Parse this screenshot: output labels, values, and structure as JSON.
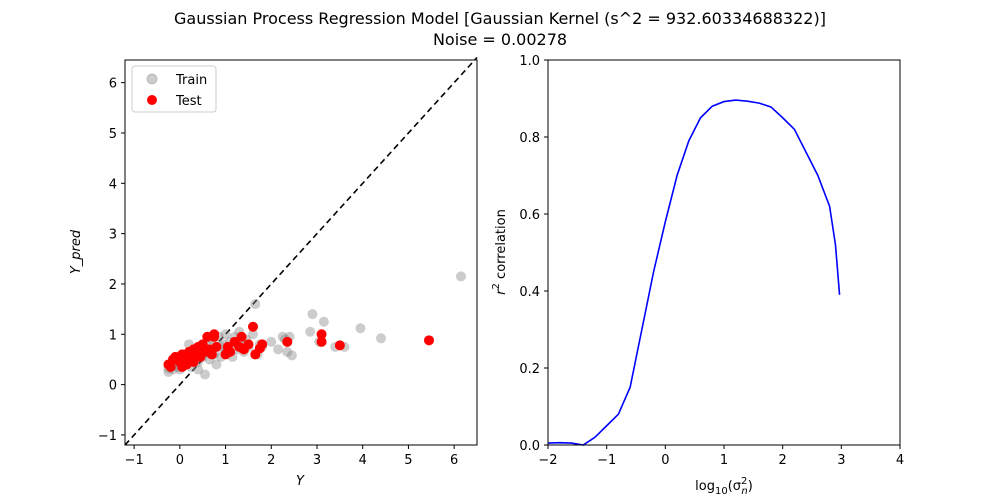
{
  "figure": {
    "title_line1": "Gaussian Process Regression Model [Gaussian Kernel (s^2 = 932.60334688322)]",
    "title_line2": "Noise = 0.00278"
  },
  "chart_data": [
    {
      "type": "scatter",
      "xlabel": "Y",
      "ylabel": "Y_pred",
      "xlim": [
        -1.2,
        6.5
      ],
      "ylim": [
        -1.2,
        6.45
      ],
      "xticks": [
        "−1",
        "0",
        "1",
        "2",
        "3",
        "4",
        "5",
        "6"
      ],
      "yticks": [
        "−1",
        "0",
        "1",
        "2",
        "3",
        "4",
        "5",
        "6"
      ],
      "legend": {
        "position": "upper-left",
        "entries": [
          "Train",
          "Test"
        ]
      },
      "reference_line": {
        "style": "dashed",
        "color": "#000000",
        "from": [
          -1.2,
          -1.2
        ],
        "to": [
          6.5,
          6.5
        ]
      },
      "series": [
        {
          "name": "Train",
          "color": "#808080",
          "opacity": 0.4,
          "points": [
            [
              -0.25,
              0.25
            ],
            [
              -0.25,
              0.32
            ],
            [
              -0.2,
              0.4
            ],
            [
              -0.15,
              0.3
            ],
            [
              -0.1,
              0.45
            ],
            [
              -0.05,
              0.35
            ],
            [
              0.0,
              0.3
            ],
            [
              0.0,
              0.42
            ],
            [
              0.05,
              0.5
            ],
            [
              0.1,
              0.38
            ],
            [
              0.1,
              0.6
            ],
            [
              0.15,
              0.45
            ],
            [
              0.2,
              0.55
            ],
            [
              0.2,
              0.8
            ],
            [
              0.25,
              0.35
            ],
            [
              0.3,
              0.65
            ],
            [
              0.3,
              0.5
            ],
            [
              0.35,
              0.7
            ],
            [
              0.4,
              0.45
            ],
            [
              0.4,
              0.3
            ],
            [
              0.45,
              0.6
            ],
            [
              0.5,
              0.75
            ],
            [
              0.5,
              0.55
            ],
            [
              0.55,
              0.2
            ],
            [
              0.6,
              0.85
            ],
            [
              0.6,
              0.65
            ],
            [
              0.65,
              0.5
            ],
            [
              0.7,
              0.9
            ],
            [
              0.7,
              0.7
            ],
            [
              0.75,
              0.6
            ],
            [
              0.8,
              0.4
            ],
            [
              0.85,
              0.95
            ],
            [
              0.9,
              0.55
            ],
            [
              0.9,
              0.75
            ],
            [
              0.95,
              0.8
            ],
            [
              1.0,
              0.65
            ],
            [
              1.0,
              1.0
            ],
            [
              1.05,
              0.7
            ],
            [
              1.1,
              0.85
            ],
            [
              1.15,
              0.55
            ],
            [
              1.2,
              0.95
            ],
            [
              1.25,
              0.7
            ],
            [
              1.3,
              0.75
            ],
            [
              1.3,
              1.05
            ],
            [
              1.35,
              0.85
            ],
            [
              1.4,
              0.65
            ],
            [
              1.45,
              0.9
            ],
            [
              1.5,
              0.75
            ],
            [
              1.6,
              1.0
            ],
            [
              1.65,
              1.6
            ],
            [
              1.7,
              0.6
            ],
            [
              1.75,
              0.8
            ],
            [
              1.8,
              0.75
            ],
            [
              2.0,
              0.85
            ],
            [
              2.15,
              0.7
            ],
            [
              2.25,
              0.95
            ],
            [
              2.3,
              0.9
            ],
            [
              2.35,
              0.65
            ],
            [
              2.4,
              0.95
            ],
            [
              2.45,
              0.58
            ],
            [
              2.85,
              1.05
            ],
            [
              2.9,
              1.4
            ],
            [
              3.05,
              0.85
            ],
            [
              3.15,
              1.25
            ],
            [
              3.4,
              0.75
            ],
            [
              3.6,
              0.75
            ],
            [
              3.95,
              1.12
            ],
            [
              4.4,
              0.92
            ],
            [
              6.15,
              2.15
            ]
          ]
        },
        {
          "name": "Test",
          "color": "#ff0000",
          "opacity": 1.0,
          "points": [
            [
              -0.25,
              0.4
            ],
            [
              -0.2,
              0.35
            ],
            [
              -0.15,
              0.5
            ],
            [
              -0.1,
              0.55
            ],
            [
              0.0,
              0.45
            ],
            [
              0.05,
              0.6
            ],
            [
              0.05,
              0.35
            ],
            [
              0.1,
              0.5
            ],
            [
              0.15,
              0.4
            ],
            [
              0.2,
              0.65
            ],
            [
              0.25,
              0.55
            ],
            [
              0.3,
              0.7
            ],
            [
              0.3,
              0.45
            ],
            [
              0.35,
              0.6
            ],
            [
              0.4,
              0.75
            ],
            [
              0.45,
              0.55
            ],
            [
              0.5,
              0.8
            ],
            [
              0.55,
              0.65
            ],
            [
              0.6,
              0.95
            ],
            [
              0.65,
              0.7
            ],
            [
              0.7,
              0.6
            ],
            [
              0.75,
              0.95
            ],
            [
              0.75,
              1.0
            ],
            [
              0.8,
              0.75
            ],
            [
              1.0,
              0.6
            ],
            [
              1.05,
              0.75
            ],
            [
              1.1,
              0.65
            ],
            [
              1.2,
              0.85
            ],
            [
              1.3,
              0.75
            ],
            [
              1.35,
              0.95
            ],
            [
              1.4,
              0.7
            ],
            [
              1.5,
              0.8
            ],
            [
              1.6,
              1.15
            ],
            [
              1.65,
              0.6
            ],
            [
              1.75,
              0.72
            ],
            [
              1.8,
              0.8
            ],
            [
              2.35,
              0.85
            ],
            [
              3.1,
              1.0
            ],
            [
              3.1,
              0.85
            ],
            [
              3.5,
              0.78
            ],
            [
              5.45,
              0.88
            ]
          ]
        }
      ]
    },
    {
      "type": "line",
      "xlabel": "log10(σ_n²)",
      "ylabel": "r² correlation",
      "xlim": [
        -2,
        4
      ],
      "ylim": [
        0,
        1
      ],
      "xticks": [
        "−2",
        "−1",
        "0",
        "1",
        "2",
        "3",
        "4"
      ],
      "yticks": [
        "0.0",
        "0.2",
        "0.4",
        "0.6",
        "0.8",
        "1.0"
      ],
      "series": [
        {
          "color": "#0000ff",
          "points": [
            [
              -2.0,
              0.005
            ],
            [
              -1.8,
              0.006
            ],
            [
              -1.6,
              0.005
            ],
            [
              -1.4,
              0.0
            ],
            [
              -1.2,
              0.02
            ],
            [
              -1.0,
              0.05
            ],
            [
              -0.8,
              0.08
            ],
            [
              -0.6,
              0.15
            ],
            [
              -0.4,
              0.3
            ],
            [
              -0.2,
              0.45
            ],
            [
              0.0,
              0.58
            ],
            [
              0.2,
              0.7
            ],
            [
              0.4,
              0.79
            ],
            [
              0.6,
              0.85
            ],
            [
              0.8,
              0.88
            ],
            [
              1.0,
              0.892
            ],
            [
              1.2,
              0.896
            ],
            [
              1.4,
              0.893
            ],
            [
              1.6,
              0.888
            ],
            [
              1.8,
              0.878
            ],
            [
              2.0,
              0.85
            ],
            [
              2.2,
              0.82
            ],
            [
              2.4,
              0.76
            ],
            [
              2.6,
              0.7
            ],
            [
              2.8,
              0.62
            ],
            [
              2.9,
              0.52
            ],
            [
              2.97,
              0.39
            ]
          ]
        }
      ]
    }
  ]
}
